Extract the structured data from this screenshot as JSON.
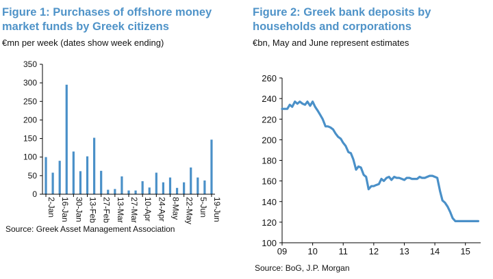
{
  "chart_data": [
    {
      "type": "bar",
      "title": "Figure 1: Purchases of offshore money market funds by Greek citizens",
      "subtitle": "€mn per week (dates show week ending)",
      "source": "Source: Greek Asset Management Association",
      "xlabel": "",
      "ylabel": "",
      "ylim": [
        0,
        350
      ],
      "yticks": [
        0,
        50,
        100,
        150,
        200,
        250,
        300,
        350
      ],
      "tick_labels": [
        "2-Jan",
        "16-Jan",
        "30-Jan",
        "13-Feb",
        "27-Feb",
        "13-Mar",
        "27-Mar",
        "10-Apr",
        "24-Apr",
        "8-May",
        "22-May",
        "5-Jun",
        "19-Jun"
      ],
      "categories": [
        "2-Jan",
        "9-Jan",
        "16-Jan",
        "23-Jan",
        "30-Jan",
        "6-Feb",
        "13-Feb",
        "20-Feb",
        "27-Feb",
        "6-Mar",
        "13-Mar",
        "20-Mar",
        "27-Mar",
        "3-Apr",
        "10-Apr",
        "17-Apr",
        "24-Apr",
        "1-May",
        "8-May",
        "15-May",
        "22-May",
        "29-May",
        "5-Jun",
        "12-Jun",
        "19-Jun"
      ],
      "values": [
        100,
        58,
        90,
        295,
        115,
        62,
        102,
        152,
        63,
        12,
        14,
        48,
        10,
        10,
        35,
        18,
        58,
        32,
        45,
        17,
        32,
        72,
        45,
        37,
        147
      ],
      "color": "#4a90c8"
    },
    {
      "type": "line",
      "title": "Figure 2: Greek bank deposits by households and corporations",
      "subtitle": "€bn, May and June represent estimates",
      "source": "Source: BoG, J.P. Morgan",
      "xlabel": "",
      "ylabel": "",
      "xlim": [
        2009,
        2015.5
      ],
      "ylim": [
        100,
        260
      ],
      "yticks": [
        100,
        120,
        140,
        160,
        180,
        200,
        220,
        240,
        260
      ],
      "xticks": [
        2009,
        2010,
        2011,
        2012,
        2013,
        2014,
        2015
      ],
      "xtick_labels": [
        "09",
        "10",
        "11",
        "12",
        "13",
        "14",
        "15"
      ],
      "color": "#4a90c8",
      "x": [
        2009.0,
        2009.17,
        2009.25,
        2009.33,
        2009.42,
        2009.5,
        2009.58,
        2009.67,
        2009.75,
        2009.83,
        2009.92,
        2010.0,
        2010.08,
        2010.17,
        2010.25,
        2010.33,
        2010.42,
        2010.5,
        2010.58,
        2010.67,
        2010.75,
        2010.83,
        2010.92,
        2011.0,
        2011.08,
        2011.17,
        2011.25,
        2011.33,
        2011.42,
        2011.5,
        2011.58,
        2011.67,
        2011.75,
        2011.83,
        2011.92,
        2012.0,
        2012.08,
        2012.17,
        2012.25,
        2012.33,
        2012.42,
        2012.5,
        2012.58,
        2012.67,
        2012.75,
        2012.83,
        2012.92,
        2013.0,
        2013.08,
        2013.17,
        2013.25,
        2013.33,
        2013.42,
        2013.5,
        2013.58,
        2013.67,
        2013.75,
        2013.83,
        2013.92,
        2014.0,
        2014.08,
        2014.17,
        2014.25,
        2014.33,
        2014.42,
        2014.5,
        2014.58,
        2014.67,
        2014.75,
        2014.83,
        2014.92,
        2015.0,
        2015.08,
        2015.17,
        2015.25,
        2015.33,
        2015.42
      ],
      "values": [
        230,
        230,
        234,
        232,
        237,
        235,
        237,
        235,
        234,
        237,
        233,
        237,
        232,
        228,
        224,
        220,
        213,
        213,
        212,
        210,
        206,
        203,
        201,
        197,
        194,
        188,
        187,
        181,
        171,
        174,
        173,
        166,
        164,
        152,
        155,
        155,
        156,
        157,
        162,
        160,
        163,
        164,
        161,
        164,
        163,
        163,
        162,
        161,
        163,
        163,
        162,
        162,
        162,
        164,
        163,
        163,
        164,
        165,
        165,
        164,
        163,
        150,
        141,
        139,
        135,
        130,
        124,
        121,
        121,
        121,
        121,
        121,
        121,
        121,
        121,
        121,
        121
      ]
    }
  ]
}
